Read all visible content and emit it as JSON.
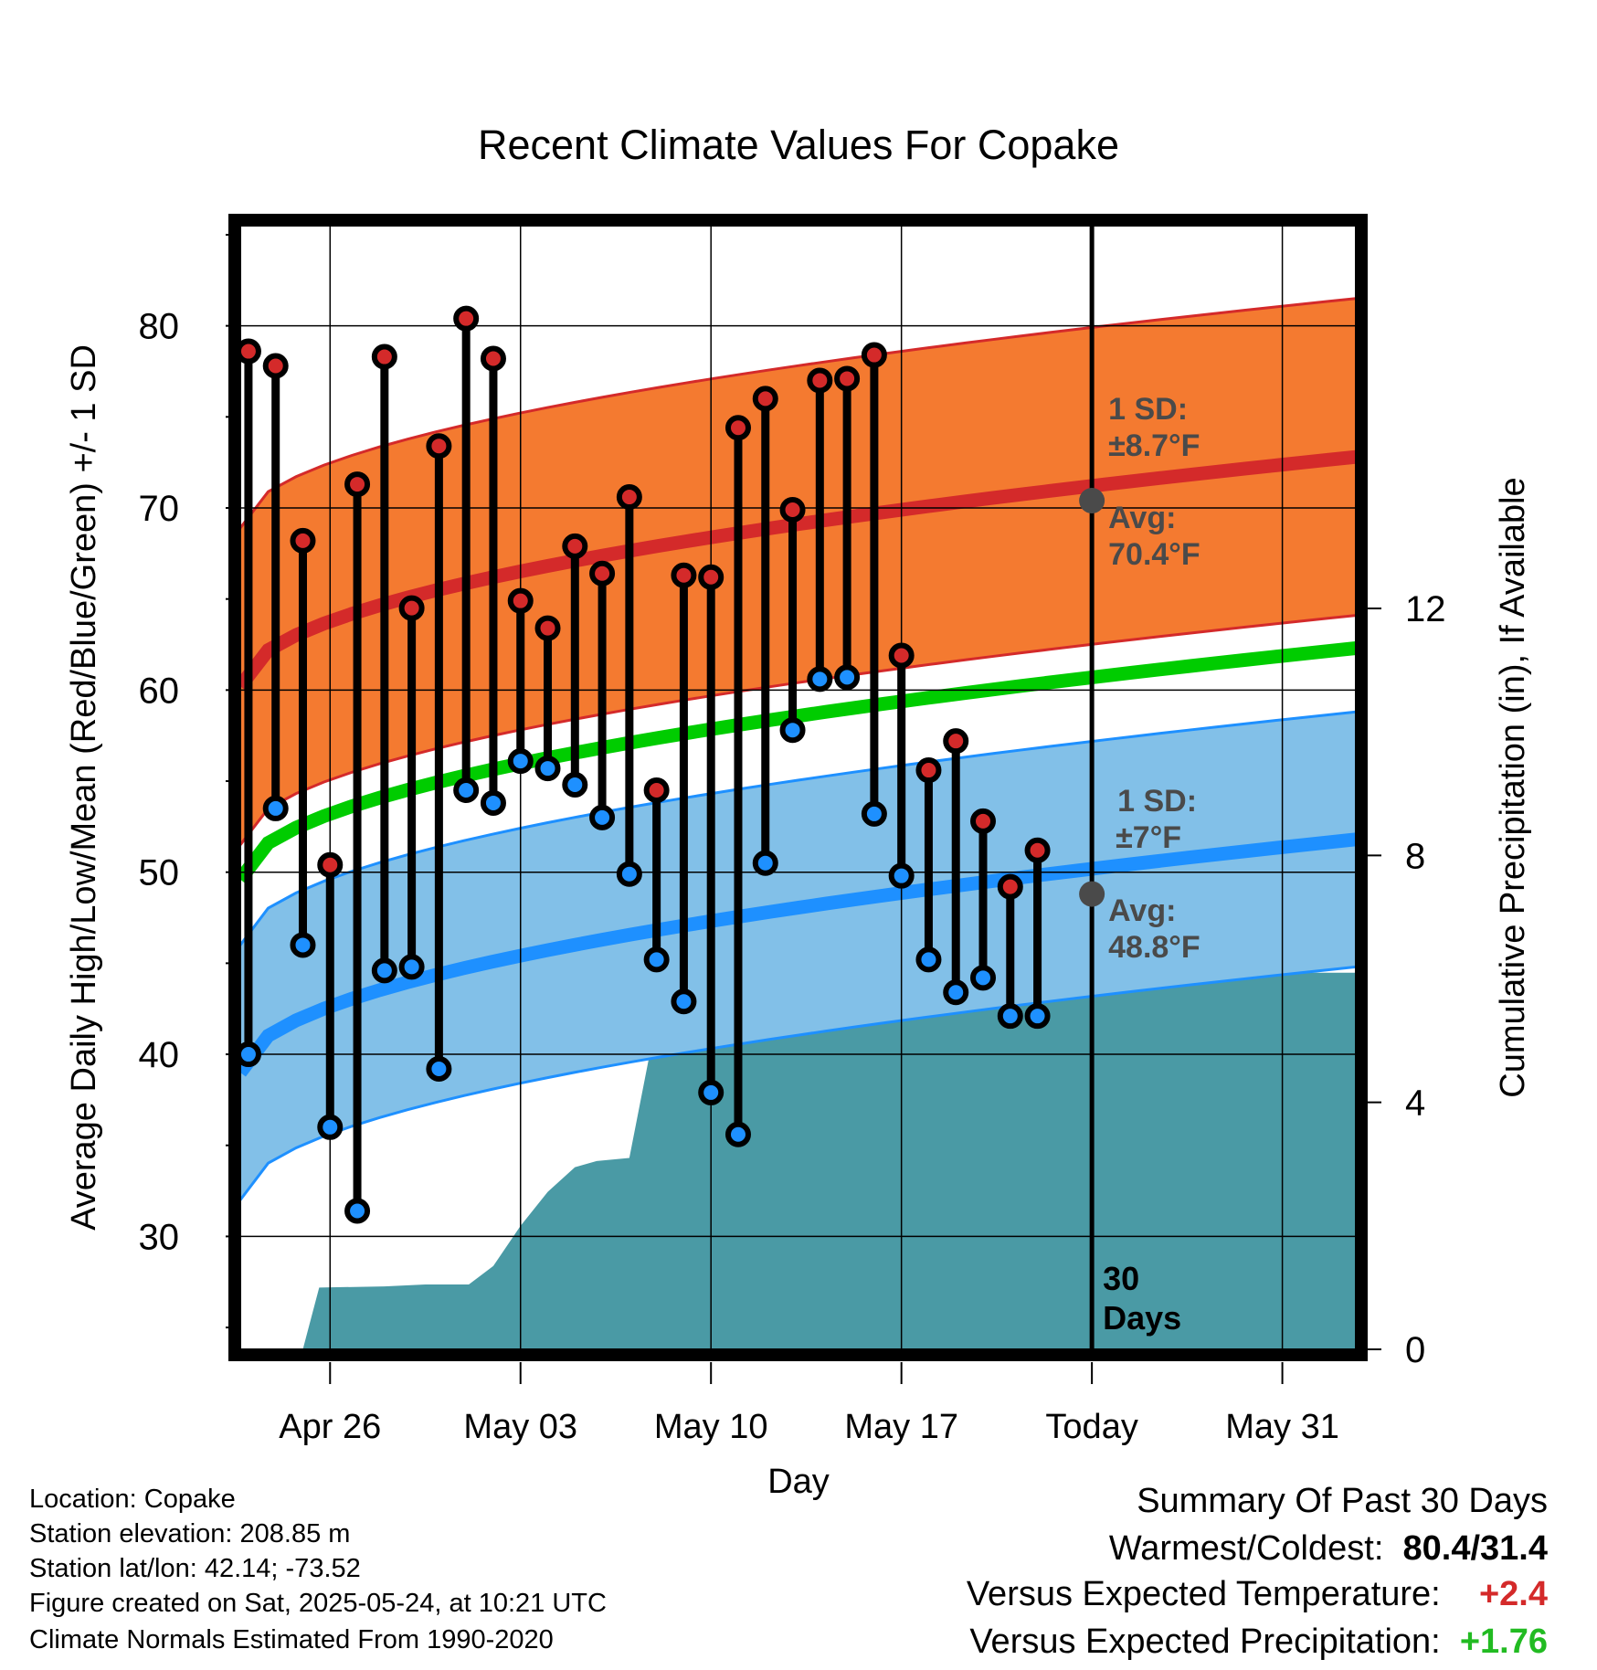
{
  "chart_data": {
    "type": "line",
    "title": "Recent Climate Values For Copake",
    "xlabel": "Day",
    "ylabel": "Average Daily High/Low/Mean (Red/Blue/Green) +/- 1 SD",
    "y2label": "Cumulative Precipitation (in), If Available",
    "ylim": [
      23.8,
      85.5
    ],
    "y2lim": [
      0,
      18.2
    ],
    "yticks": [
      30,
      40,
      50,
      60,
      70,
      80
    ],
    "y2ticks": [
      0,
      4,
      8,
      12
    ],
    "x_ticklabels": [
      "Apr 26",
      "May 03",
      "May 10",
      "May 17",
      "Today",
      "May 31"
    ],
    "x_tick_days": [
      26,
      33,
      40,
      47,
      54,
      61
    ],
    "xlim": [
      22.7,
      63.7
    ],
    "today_day": 54,
    "today_label": "30 Days",
    "grid": true,
    "normals": {
      "high_mean": [
        60.2,
        72.8
      ],
      "high_sd": 8.7,
      "low_mean": [
        39.0,
        51.8
      ],
      "low_sd": 7.0,
      "mean_mean": [
        49.6,
        62.3
      ],
      "x_range": [
        22.7,
        63.7
      ]
    },
    "high_annotation": {
      "sd_label": "1 SD:",
      "sd_value": "±8.7°F",
      "avg_label": "Avg:",
      "avg_value": "70.4°F",
      "avg": 70.4
    },
    "low_annotation": {
      "sd_label": "1 SD:",
      "sd_value": "±7°F",
      "avg_label": "Avg:",
      "avg_value": "48.8°F",
      "avg": 48.8
    },
    "daily": {
      "days": [
        23,
        24,
        25,
        26,
        27,
        28,
        29,
        30,
        31,
        32,
        33,
        34,
        35,
        36,
        37,
        38,
        39,
        40,
        41,
        42,
        43,
        44,
        45,
        46,
        47,
        48,
        49,
        50,
        51,
        52
      ],
      "highs": [
        78.6,
        77.8,
        68.2,
        50.4,
        71.3,
        78.3,
        64.5,
        73.4,
        80.4,
        78.2,
        64.9,
        63.4,
        67.9,
        66.4,
        70.6,
        54.5,
        66.3,
        66.2,
        74.4,
        76.0,
        69.9,
        77.0,
        77.1,
        78.4,
        61.9,
        55.6,
        57.2,
        52.8,
        49.2,
        51.2
      ],
      "lows": [
        40.0,
        53.5,
        46.0,
        36.0,
        31.4,
        44.6,
        44.8,
        39.2,
        54.5,
        53.8,
        56.1,
        55.7,
        54.8,
        53.0,
        49.9,
        45.2,
        42.9,
        37.9,
        35.6,
        50.5,
        57.8,
        60.6,
        60.7,
        53.2,
        49.8,
        45.2,
        43.4,
        44.2,
        42.1,
        42.1
      ]
    },
    "precip": {
      "x": [
        22.7,
        23.9,
        25.0,
        25.6,
        28.0,
        29.5,
        31.1,
        32.0,
        33.0,
        34.0,
        35.0,
        35.8,
        37.0,
        38.0,
        38.3,
        39.0,
        40.0,
        45.0,
        46.0,
        47.0,
        51.0,
        52.0,
        53.0,
        63.7
      ],
      "y": [
        0,
        0,
        0,
        1.0,
        1.02,
        1.05,
        1.05,
        1.35,
        2.0,
        2.55,
        2.95,
        3.05,
        3.1,
        5.35,
        5.45,
        5.5,
        5.55,
        5.55,
        5.6,
        5.6,
        5.65,
        5.95,
        6.1,
        6.1
      ]
    }
  },
  "info": {
    "location": "Location: Copake",
    "elevation": "Station elevation: 208.85 m",
    "latlon": "Station lat/lon: 42.14; -73.52",
    "created": "Figure created on Sat, 2025-05-24, at 10:21 UTC",
    "normals": "Climate Normals Estimated From 1990-2020"
  },
  "summary": {
    "heading": "Summary Of Past 30 Days",
    "warm_cold_label": "Warmest/Coldest:",
    "warm_cold_value": "80.4/31.4",
    "temp_label": "Versus Expected Temperature:",
    "temp_value": "+2.4",
    "precip_label": "Versus Expected Precipitation:",
    "precip_value": "+1.76"
  },
  "colors": {
    "high_band": "#f47a30",
    "high_line": "#d42a2a",
    "low_band": "#82c0e8",
    "low_line": "#1e90ff",
    "mean_line": "#00cc00",
    "precip": "#4a9aa5",
    "high_dot": "#d42a2a",
    "low_dot": "#1e90ff",
    "annotation": "#4a4a4a",
    "temp_delta": "#d42a2a",
    "precip_delta": "#22bb22"
  }
}
